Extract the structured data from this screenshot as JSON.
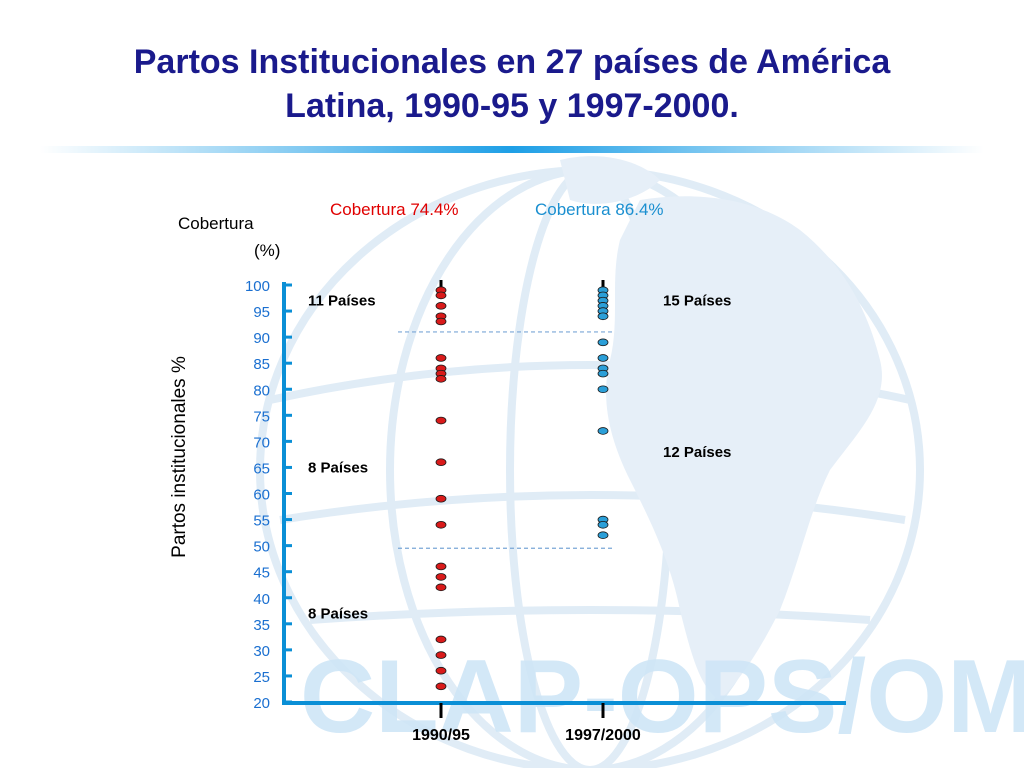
{
  "slide": {
    "title_line1": "Partos Institucionales en 27 países de América",
    "title_line2": "Latina, 1990-95 y 1997-2000.",
    "watermark": "CLAP-OPS/OMS",
    "colors": {
      "title": "#1a1a8c",
      "axis": "#0a8fd6",
      "tick_text": "#1a6fd0",
      "red_dot": "#d91a1a",
      "blue_dot": "#2b9fd8",
      "red_text": "#e00000",
      "blue_text": "#1a8fd0",
      "divider": "#7aa6d6",
      "watermark": "#cfe6f7"
    }
  },
  "chart_data": {
    "type": "scatter",
    "title": "",
    "ylabel": "Partos institucionales %",
    "y_unit_label_line1": "Cobertura",
    "y_unit_label_line2": "(%)",
    "ylim": [
      20,
      100
    ],
    "yticks": [
      100,
      95,
      90,
      85,
      80,
      75,
      70,
      65,
      60,
      55,
      50,
      45,
      40,
      35,
      30,
      25,
      20
    ],
    "categories": [
      "1990/95",
      "1997/2000"
    ],
    "grid": false,
    "series": [
      {
        "category": "1990/95",
        "coverage_label": "Cobertura 74.4%",
        "values": [
          99,
          98,
          96,
          94,
          93,
          86,
          84,
          83,
          82,
          74,
          66,
          59,
          54,
          46,
          44,
          42,
          32,
          29,
          26,
          23
        ]
      },
      {
        "category": "1997/2000",
        "coverage_label": "Cobertura 86.4%",
        "values": [
          99,
          98,
          97,
          96,
          95,
          94,
          89,
          86,
          84,
          83,
          80,
          72,
          55,
          54,
          52
        ]
      }
    ],
    "reference_lines": [
      91,
      49.5
    ],
    "annotations": [
      {
        "text": "11 Países",
        "side": "left",
        "y": 97
      },
      {
        "text": "8 Países",
        "side": "left",
        "y": 65
      },
      {
        "text": "8 Países",
        "side": "left",
        "y": 37
      },
      {
        "text": "15 Países",
        "side": "right",
        "y": 97
      },
      {
        "text": "12 Países",
        "side": "right",
        "y": 68
      }
    ]
  }
}
